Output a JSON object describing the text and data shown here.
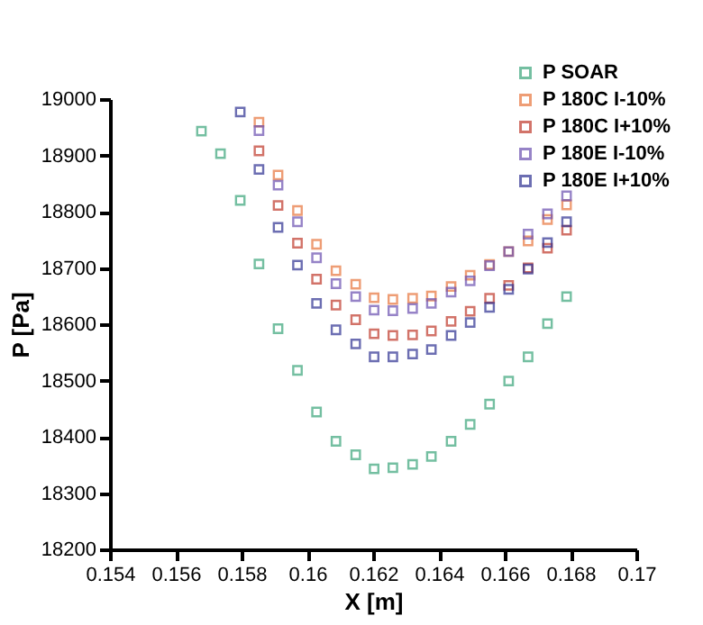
{
  "chart_data": {
    "type": "scatter",
    "xlabel": "X [m]",
    "ylabel": "P [Pa]",
    "xlim": [
      0.154,
      0.17
    ],
    "xticks": [
      0.154,
      0.156,
      0.158,
      0.16,
      0.162,
      0.164,
      0.166,
      0.168,
      0.17
    ],
    "ylim": [
      18200,
      19000
    ],
    "yticks": [
      18200,
      18300,
      18400,
      18500,
      18600,
      18700,
      18800,
      18900,
      19000
    ],
    "grid": false,
    "legend": "top right",
    "marker": "square",
    "series": [
      {
        "name": "P SOAR",
        "color": "#3aa57a",
        "x": [
          0.15678,
          0.15736,
          0.15796,
          0.15853,
          0.15911,
          0.1597,
          0.16028,
          0.16087,
          0.16147,
          0.16203,
          0.1626,
          0.1632,
          0.16377,
          0.16437,
          0.16495,
          0.16554,
          0.16612,
          0.16671,
          0.1673,
          0.16788
        ],
        "values": [
          18943,
          18903,
          18820,
          18707,
          18592,
          18518,
          18444,
          18392,
          18368,
          18343,
          18345,
          18351,
          18365,
          18392,
          18422,
          18458,
          18499,
          18542,
          18601,
          18649
        ]
      },
      {
        "name": "P 180C I-10%",
        "color": "#e8743b",
        "x": [
          0.15853,
          0.15911,
          0.1597,
          0.16028,
          0.16087,
          0.16147,
          0.16203,
          0.1626,
          0.1632,
          0.16377,
          0.16437,
          0.16495,
          0.16554,
          0.16612,
          0.16671,
          0.1673,
          0.16788
        ],
        "values": [
          18959,
          18865,
          18802,
          18742,
          18695,
          18671,
          18647,
          18644,
          18646,
          18650,
          18667,
          18687,
          18706,
          18729,
          18748,
          18786,
          18812
        ]
      },
      {
        "name": "P 180C I+10%",
        "color": "#c0392b",
        "x": [
          0.15853,
          0.15911,
          0.1597,
          0.16028,
          0.16087,
          0.16147,
          0.16203,
          0.1626,
          0.1632,
          0.16377,
          0.16437,
          0.16495,
          0.16554,
          0.16612,
          0.16671,
          0.1673,
          0.16788
        ],
        "values": [
          18908,
          18811,
          18744,
          18680,
          18634,
          18608,
          18583,
          18580,
          18581,
          18588,
          18605,
          18623,
          18646,
          18669,
          18700,
          18735,
          18767
        ]
      },
      {
        "name": "P 180E I-10%",
        "color": "#6a4fb0",
        "x": [
          0.15853,
          0.15911,
          0.1597,
          0.16028,
          0.16087,
          0.16147,
          0.16203,
          0.1626,
          0.1632,
          0.16377,
          0.16437,
          0.16495,
          0.16554,
          0.16612,
          0.16671,
          0.1673,
          0.16788
        ],
        "values": [
          18944,
          18847,
          18782,
          18718,
          18672,
          18649,
          18625,
          18624,
          18628,
          18637,
          18657,
          18677,
          18704,
          18729,
          18760,
          18796,
          18828
        ]
      },
      {
        "name": "P 180E I+10%",
        "color": "#2e3192",
        "x": [
          0.15796,
          0.15853,
          0.15911,
          0.1597,
          0.16028,
          0.16087,
          0.16147,
          0.16203,
          0.1626,
          0.1632,
          0.16377,
          0.16437,
          0.16495,
          0.16554,
          0.16612,
          0.16671,
          0.1673,
          0.16788
        ],
        "values": [
          18977,
          18875,
          18772,
          18705,
          18637,
          18590,
          18565,
          18542,
          18542,
          18547,
          18555,
          18580,
          18603,
          18630,
          18662,
          18698,
          18745,
          18782
        ]
      }
    ]
  }
}
